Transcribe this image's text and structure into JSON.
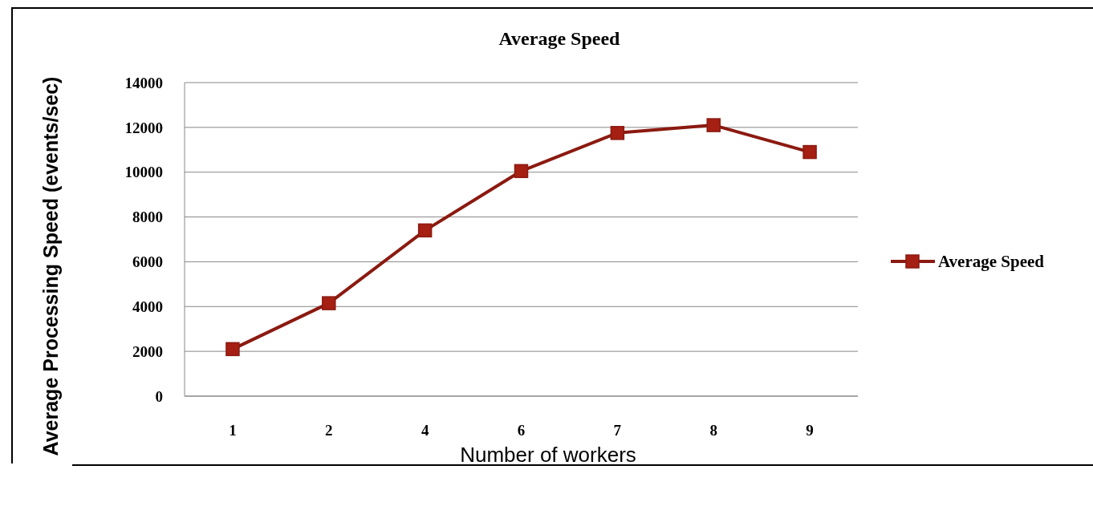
{
  "chart_data": {
    "type": "line",
    "title": "Average Speed",
    "xlabel": "Number of workers",
    "ylabel": "Average Processing Speed (events/sec)",
    "categories": [
      "1",
      "2",
      "4",
      "6",
      "7",
      "8",
      "9"
    ],
    "series": [
      {
        "name": "Average Speed",
        "color": "#8b1a10",
        "values": [
          2100,
          4150,
          7400,
          10050,
          11750,
          12100,
          10900
        ]
      }
    ],
    "ylim": [
      0,
      14000
    ],
    "yticks": [
      0,
      2000,
      4000,
      6000,
      8000,
      10000,
      12000,
      14000
    ],
    "grid": "y",
    "legend": "right",
    "marker": "square",
    "line_style": "solid"
  }
}
